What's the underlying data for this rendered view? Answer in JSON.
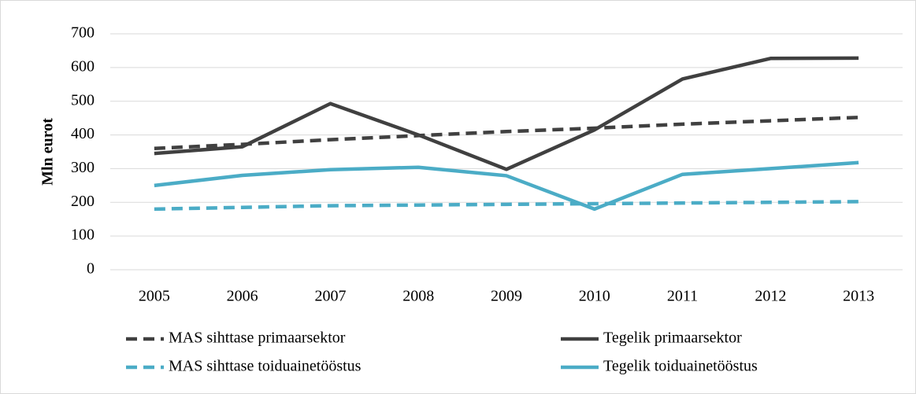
{
  "chart_data": {
    "type": "line",
    "y_label": "Mln eurot",
    "categories": [
      "2005",
      "2006",
      "2007",
      "2008",
      "2009",
      "2010",
      "2011",
      "2012",
      "2013"
    ],
    "series": [
      {
        "name": "MAS sihttase primaarsektor",
        "color": "#404040",
        "style": "dashed",
        "values": [
          360,
          372,
          386,
          398,
          410,
          420,
          432,
          442,
          452
        ]
      },
      {
        "name": "Tegelik primaarsektor",
        "color": "#404040",
        "style": "solid",
        "values": [
          345,
          365,
          493,
          400,
          298,
          415,
          566,
          627,
          628
        ]
      },
      {
        "name": "MAS sihttase toiduainetööstus",
        "color": "#4bacc6",
        "style": "dashed",
        "values": [
          180,
          185,
          190,
          192,
          194,
          196,
          198,
          200,
          202
        ]
      },
      {
        "name": "Tegelik toiduainetööstus",
        "color": "#4bacc6",
        "style": "solid",
        "values": [
          250,
          280,
          297,
          304,
          279,
          180,
          283,
          300,
          318
        ]
      }
    ],
    "ylim": [
      0,
      700
    ],
    "yticks": [
      0,
      100,
      200,
      300,
      400,
      500,
      600,
      700
    ],
    "grid": true
  }
}
